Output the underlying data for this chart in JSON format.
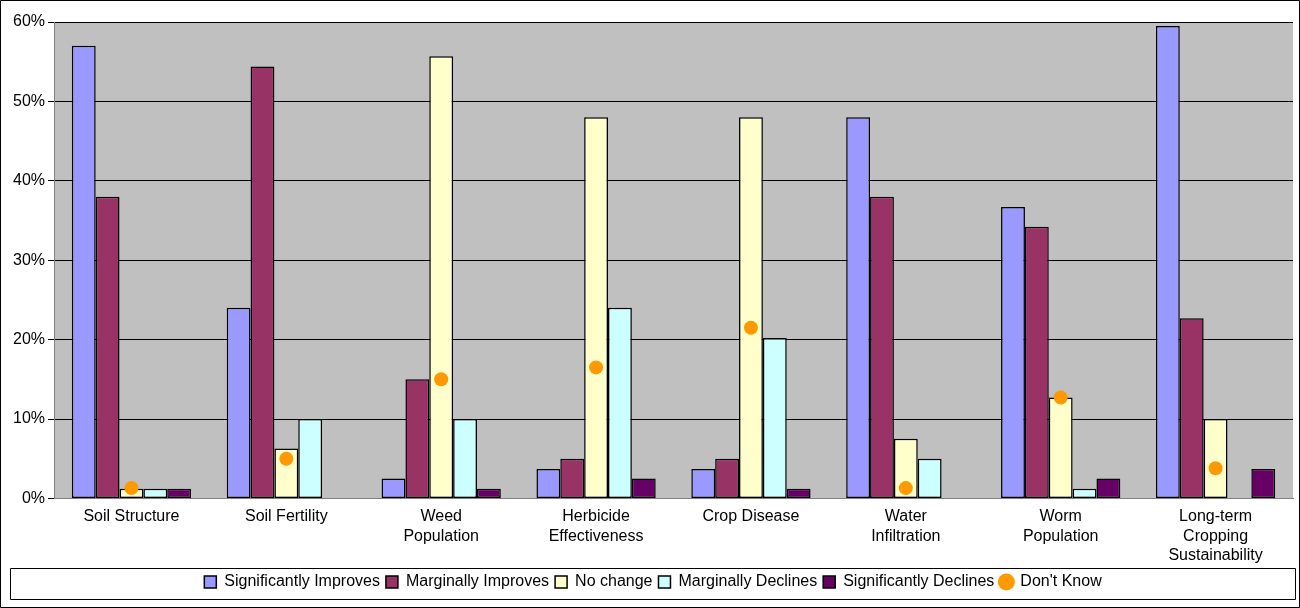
{
  "chart_data": {
    "type": "bar",
    "categories": [
      "Soil Structure",
      "Soil Fertility",
      "Weed Population",
      "Herbicide Effectiveness",
      "Crop Disease",
      "Water Infiltration",
      "Worm Population",
      "Long-term Cropping Sustainability"
    ],
    "series": [
      {
        "name": "Significantly Improves",
        "color": "#9999ff",
        "values": [
          57,
          24,
          2.5,
          3.7,
          3.7,
          48,
          36.7,
          59.5
        ]
      },
      {
        "name": "Marginally Improves",
        "color": "#993366",
        "values": [
          38,
          54.4,
          15,
          5,
          5,
          38,
          34.2,
          22.7
        ]
      },
      {
        "name": "No change",
        "color": "#ffffcc",
        "values": [
          1.2,
          6.3,
          55.7,
          48,
          48,
          7.5,
          12.7,
          10
        ]
      },
      {
        "name": "Marginally Declines",
        "color": "#ccffff",
        "values": [
          1.2,
          10,
          10,
          24,
          20.2,
          5,
          1.2,
          0
        ]
      },
      {
        "name": "Significantly Declines",
        "color": "#660066",
        "values": [
          1.2,
          0,
          1.2,
          2.5,
          1.2,
          0,
          2.5,
          3.7
        ]
      },
      {
        "name": "Don't Know",
        "type": "scatter",
        "color": "#ff9900",
        "x": [
          "Soil Structure",
          "Soil Fertility",
          "Weed Population",
          "Herbicide Effectiveness",
          "Crop Disease",
          "Water Infiltration",
          "Worm Population",
          "Long-term Cropping Sustainability"
        ],
        "values": [
          1.3,
          5,
          15,
          16.5,
          21.5,
          1.3,
          12.7,
          3.8
        ],
        "marker": "circle"
      }
    ],
    "ylim": [
      0,
      60
    ],
    "yticks": [
      {
        "value": 0,
        "label": "0%"
      },
      {
        "value": 10,
        "label": "10%"
      },
      {
        "value": 20,
        "label": "20%"
      },
      {
        "value": 30,
        "label": "30%"
      },
      {
        "value": 40,
        "label": "40%"
      },
      {
        "value": 50,
        "label": "50%"
      },
      {
        "value": 60,
        "label": "60%"
      }
    ],
    "grid": "y",
    "legend": "bottom"
  }
}
